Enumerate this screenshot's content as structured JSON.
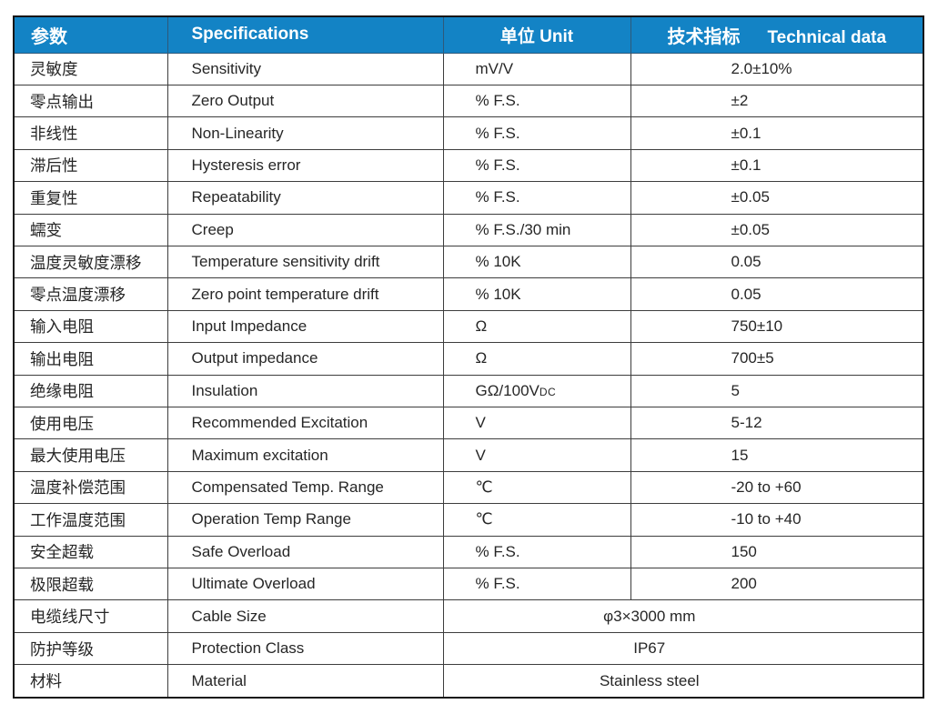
{
  "table": {
    "header": {
      "param": "参数",
      "spec": "Specifications",
      "unit": "单位 Unit",
      "tech_zh": "技术指标",
      "tech_en": "Technical data"
    },
    "rows": [
      {
        "param": "灵敏度",
        "spec": "Sensitivity",
        "unit": "mV/V",
        "value": "2.0±10%"
      },
      {
        "param": "零点输出",
        "spec": "Zero Output",
        "unit": "% F.S.",
        "value": "±2"
      },
      {
        "param": "非线性",
        "spec": "Non-Linearity",
        "unit": "% F.S.",
        "value": "±0.1"
      },
      {
        "param": "滞后性",
        "spec": "Hysteresis error",
        "unit": "% F.S.",
        "value": "±0.1"
      },
      {
        "param": "重复性",
        "spec": "Repeatability",
        "unit": "% F.S.",
        "value": "±0.05"
      },
      {
        "param": "蠕变",
        "spec": "Creep",
        "unit": "% F.S./30 min",
        "value": "±0.05"
      },
      {
        "param": "温度灵敏度漂移",
        "spec": "Temperature sensitivity drift",
        "unit": "% 10K",
        "value": "0.05"
      },
      {
        "param": "零点温度漂移",
        "spec": "Zero point temperature drift",
        "unit": "% 10K",
        "value": "0.05"
      },
      {
        "param": "输入电阻",
        "spec": "Input Impedance",
        "unit": "Ω",
        "value": "750±10"
      },
      {
        "param": "输出电阻",
        "spec": "Output impedance",
        "unit": "Ω",
        "value": "700±5"
      },
      {
        "param": "绝缘电阻",
        "spec": "Insulation",
        "unit": "GΩ/100V",
        "unit_sub": "DC",
        "value": "5"
      },
      {
        "param": "使用电压",
        "spec": "Recommended Excitation",
        "unit": "V",
        "value": "5-12"
      },
      {
        "param": "最大使用电压",
        "spec": "Maximum excitation",
        "unit": "V",
        "value": "15"
      },
      {
        "param": "温度补偿范围",
        "spec": "Compensated Temp. Range",
        "unit": "℃",
        "value": "-20 to +60"
      },
      {
        "param": "工作温度范围",
        "spec": "Operation Temp Range",
        "unit": "℃",
        "value": "-10 to +40"
      },
      {
        "param": "安全超载",
        "spec": "Safe Overload",
        "unit": "% F.S.",
        "value": "150"
      },
      {
        "param": "极限超载",
        "spec": "Ultimate Overload",
        "unit": "% F.S.",
        "value": "200"
      },
      {
        "param": "电缆线尺寸",
        "spec": "Cable Size",
        "merged_value": "φ3×3000 mm"
      },
      {
        "param": "防护等级",
        "spec": "Protection Class",
        "merged_value": "IP67"
      },
      {
        "param": "材料",
        "spec": "Material",
        "merged_value": "Stainless steel"
      }
    ],
    "colors": {
      "header_bg": "#1383c5",
      "header_text": "#ffffff",
      "grid_line": "#3d3d3d",
      "outer_border": "#161616",
      "body_text": "#262626"
    }
  }
}
